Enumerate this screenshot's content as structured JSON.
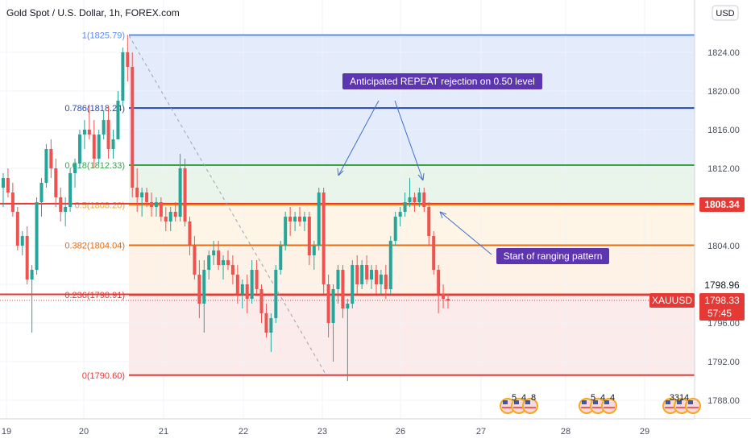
{
  "header": {
    "title": "Gold Spot / U.S. Dollar, 1h, FOREX.com"
  },
  "price_scale": {
    "currency_button": "USD"
  },
  "chart_data": {
    "type": "candlestick",
    "title": "Gold Spot / U.S. Dollar, 1h, FOREX.com",
    "x_ticks": [
      "19",
      "20",
      "21",
      "22",
      "23",
      "26",
      "27",
      "28",
      "29"
    ],
    "y_ticks": [
      1788.0,
      1792.0,
      1796.0,
      1800.0,
      1804.0,
      1808.0,
      1812.0,
      1816.0,
      1820.0,
      1824.0
    ],
    "y_tick_labels": [
      "1788.00",
      "1792.00",
      "1796.00",
      "1800.00",
      "1804.00",
      "1808.00",
      "1812.00",
      "1816.00",
      "1820.00",
      "1824.00"
    ],
    "ylim": [
      1786.0,
      1829.0
    ],
    "grid": true,
    "fib_levels": [
      {
        "ratio": 1,
        "price": 1825.79,
        "label": "1(1825.79)",
        "color": "#5b8def"
      },
      {
        "ratio": 0.786,
        "price": 1818.24,
        "label": "0.786(1818.24)",
        "color": "#2a49b3"
      },
      {
        "ratio": 0.618,
        "price": 1812.33,
        "label": "0.618(1812.33)",
        "color": "#3aa34a"
      },
      {
        "ratio": 0.5,
        "price": 1808.2,
        "label": "0.5(1808.20)",
        "color": "#f5a623"
      },
      {
        "ratio": 0.382,
        "price": 1804.04,
        "label": "0.382(1804.04)",
        "color": "#e56d12"
      },
      {
        "ratio": 0.236,
        "price": 1798.91,
        "label": "0.236(1798.91)",
        "color": "#e53935"
      },
      {
        "ratio": 0,
        "price": 1790.6,
        "label": "0(1790.60)",
        "color": "#e53935"
      }
    ],
    "horizontal_lines": [
      {
        "price": 1808.34,
        "label": "1808.34",
        "color": "#e53935"
      },
      {
        "price": 1798.96,
        "label": "1798.96",
        "color": "#e53935"
      }
    ],
    "current_price": {
      "symbol": "XAUUSD",
      "price": "1798.33",
      "countdown": "57:45",
      "value": 1798.33
    },
    "annotations": [
      {
        "text": "Anticipated REPEAT rejection on 0.50 level"
      },
      {
        "text": "Start of ranging pattern"
      }
    ],
    "event_badges": [
      "5",
      "4",
      "8",
      "5",
      "4",
      "4",
      "331",
      "4"
    ],
    "series": [
      {
        "name": "XAUUSD",
        "ohlc": [
          [
            1810.0,
            1811.5,
            1808.0,
            1811.0
          ],
          [
            1811.0,
            1812.0,
            1809.0,
            1809.5
          ],
          [
            1809.5,
            1810.5,
            1807.0,
            1807.5
          ],
          [
            1807.5,
            1808.0,
            1803.5,
            1804.0
          ],
          [
            1804.0,
            1805.5,
            1803.0,
            1805.0
          ],
          [
            1805.0,
            1806.0,
            1800.0,
            1800.5
          ],
          [
            1800.5,
            1802.0,
            1795.0,
            1801.5
          ],
          [
            1801.5,
            1809.0,
            1801.0,
            1808.5
          ],
          [
            1808.5,
            1811.0,
            1807.0,
            1810.5
          ],
          [
            1810.5,
            1814.5,
            1810.0,
            1814.0
          ],
          [
            1814.0,
            1815.0,
            1811.0,
            1812.0
          ],
          [
            1812.0,
            1813.0,
            1808.0,
            1809.0
          ],
          [
            1809.0,
            1810.0,
            1806.5,
            1807.5
          ],
          [
            1807.5,
            1809.0,
            1806.0,
            1808.0
          ],
          [
            1808.0,
            1812.0,
            1807.5,
            1811.5
          ],
          [
            1811.5,
            1813.0,
            1810.0,
            1812.5
          ],
          [
            1812.5,
            1816.0,
            1812.0,
            1815.5
          ],
          [
            1815.5,
            1817.0,
            1814.0,
            1816.0
          ],
          [
            1816.0,
            1818.5,
            1815.0,
            1815.5
          ],
          [
            1815.5,
            1817.0,
            1812.0,
            1813.0
          ],
          [
            1813.0,
            1816.0,
            1812.5,
            1815.5
          ],
          [
            1815.5,
            1818.0,
            1815.0,
            1817.0
          ],
          [
            1817.0,
            1818.5,
            1813.0,
            1814.0
          ],
          [
            1814.0,
            1816.0,
            1813.0,
            1815.0
          ],
          [
            1815.0,
            1820.0,
            1815.0,
            1819.0
          ],
          [
            1819.0,
            1824.5,
            1818.5,
            1824.0
          ],
          [
            1824.0,
            1825.8,
            1821.0,
            1822.5
          ],
          [
            1822.5,
            1824.0,
            1809.0,
            1810.0
          ],
          [
            1810.0,
            1812.0,
            1807.5,
            1809.0
          ],
          [
            1809.0,
            1810.0,
            1807.0,
            1809.5
          ],
          [
            1809.5,
            1810.0,
            1808.0,
            1808.5
          ],
          [
            1808.5,
            1809.5,
            1807.0,
            1808.0
          ],
          [
            1808.0,
            1809.0,
            1807.0,
            1808.5
          ],
          [
            1808.5,
            1809.0,
            1806.5,
            1807.0
          ],
          [
            1807.0,
            1808.0,
            1805.5,
            1806.5
          ],
          [
            1806.5,
            1808.0,
            1805.5,
            1807.5
          ],
          [
            1807.5,
            1808.5,
            1806.5,
            1807.0
          ],
          [
            1807.0,
            1813.5,
            1806.5,
            1812.0
          ],
          [
            1812.0,
            1813.0,
            1806.0,
            1806.5
          ],
          [
            1806.5,
            1807.0,
            1803.0,
            1804.0
          ],
          [
            1804.0,
            1805.0,
            1800.5,
            1801.0
          ],
          [
            1801.0,
            1802.5,
            1796.5,
            1798.0
          ],
          [
            1798.0,
            1802.5,
            1795.0,
            1801.5
          ],
          [
            1801.5,
            1803.5,
            1800.5,
            1803.0
          ],
          [
            1803.0,
            1804.5,
            1802.0,
            1803.5
          ],
          [
            1803.5,
            1804.5,
            1801.5,
            1802.0
          ],
          [
            1802.0,
            1803.0,
            1800.5,
            1802.5
          ],
          [
            1802.5,
            1803.5,
            1801.5,
            1802.0
          ],
          [
            1802.0,
            1803.0,
            1800.0,
            1801.0
          ],
          [
            1801.0,
            1802.0,
            1798.0,
            1799.0
          ],
          [
            1799.0,
            1800.5,
            1797.5,
            1800.0
          ],
          [
            1800.0,
            1801.0,
            1797.0,
            1798.5
          ],
          [
            1798.5,
            1802.5,
            1798.0,
            1801.5
          ],
          [
            1801.5,
            1802.5,
            1799.0,
            1799.5
          ],
          [
            1799.5,
            1800.0,
            1796.0,
            1797.0
          ],
          [
            1797.0,
            1798.0,
            1794.5,
            1795.0
          ],
          [
            1795.0,
            1797.0,
            1793.0,
            1796.5
          ],
          [
            1796.5,
            1802.0,
            1796.0,
            1801.5
          ],
          [
            1801.5,
            1804.5,
            1801.0,
            1804.0
          ],
          [
            1804.0,
            1807.5,
            1803.5,
            1807.0
          ],
          [
            1807.0,
            1808.0,
            1805.0,
            1806.5
          ],
          [
            1806.5,
            1807.5,
            1805.5,
            1807.0
          ],
          [
            1807.0,
            1808.0,
            1806.0,
            1806.5
          ],
          [
            1806.5,
            1807.5,
            1805.5,
            1807.0
          ],
          [
            1807.0,
            1807.5,
            1802.0,
            1803.0
          ],
          [
            1803.0,
            1804.5,
            1801.5,
            1804.0
          ],
          [
            1804.0,
            1810.0,
            1803.5,
            1809.5
          ],
          [
            1809.5,
            1810.0,
            1799.0,
            1800.0
          ],
          [
            1800.0,
            1801.0,
            1794.5,
            1796.0
          ],
          [
            1796.0,
            1800.0,
            1792.0,
            1799.5
          ],
          [
            1799.5,
            1802.0,
            1798.0,
            1801.5
          ],
          [
            1801.5,
            1802.0,
            1796.5,
            1797.5
          ],
          [
            1797.5,
            1798.5,
            1790.0,
            1798.0
          ],
          [
            1798.0,
            1802.5,
            1797.5,
            1802.0
          ],
          [
            1802.0,
            1803.0,
            1799.0,
            1800.0
          ],
          [
            1800.0,
            1802.5,
            1799.5,
            1802.0
          ],
          [
            1802.0,
            1803.0,
            1800.0,
            1800.5
          ],
          [
            1800.5,
            1802.0,
            1799.5,
            1801.5
          ],
          [
            1801.5,
            1802.0,
            1799.0,
            1800.0
          ],
          [
            1800.0,
            1801.5,
            1799.0,
            1801.0
          ],
          [
            1801.0,
            1802.0,
            1798.5,
            1799.5
          ],
          [
            1799.5,
            1805.0,
            1799.0,
            1804.5
          ],
          [
            1804.5,
            1807.5,
            1804.0,
            1807.0
          ],
          [
            1807.0,
            1808.0,
            1806.0,
            1807.5
          ],
          [
            1807.5,
            1809.5,
            1807.0,
            1808.5
          ],
          [
            1808.5,
            1811.0,
            1808.0,
            1809.0
          ],
          [
            1809.0,
            1809.5,
            1807.5,
            1808.5
          ],
          [
            1808.5,
            1810.0,
            1808.0,
            1809.5
          ],
          [
            1809.5,
            1810.0,
            1807.5,
            1808.0
          ],
          [
            1808.0,
            1808.5,
            1804.0,
            1805.0
          ],
          [
            1805.0,
            1805.5,
            1801.0,
            1801.5
          ],
          [
            1801.5,
            1802.0,
            1797.0,
            1799.0
          ],
          [
            1799.0,
            1800.0,
            1797.5,
            1798.5
          ],
          [
            1798.5,
            1799.0,
            1797.5,
            1798.3
          ]
        ]
      }
    ],
    "candle_colors": {
      "up": "#26a69a",
      "down": "#ef5350"
    }
  }
}
